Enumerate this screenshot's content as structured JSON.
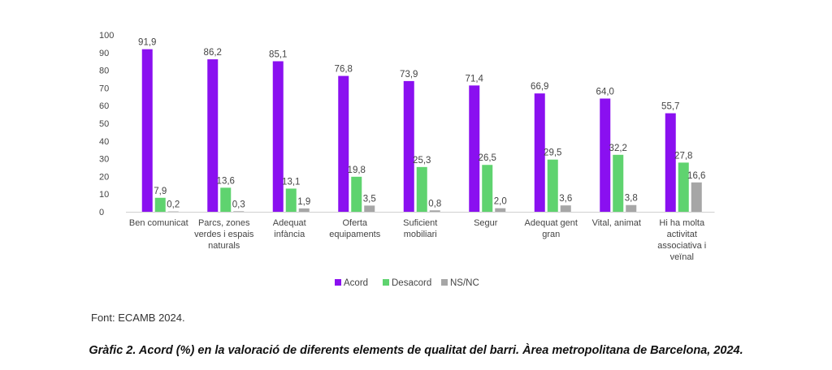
{
  "chart_data": {
    "type": "bar",
    "categories": [
      [
        "Ben comunicat"
      ],
      [
        "Parcs, zones",
        "verdes i espais",
        "naturals"
      ],
      [
        "Adequat",
        "infància"
      ],
      [
        "Oferta",
        "equipaments"
      ],
      [
        "Suficient",
        "mobiliari"
      ],
      [
        "Segur"
      ],
      [
        "Adequat gent",
        "gran"
      ],
      [
        "Vital, animat"
      ],
      [
        "Hi ha molta",
        "activitat",
        "associativa i",
        "veïnal"
      ]
    ],
    "series": [
      {
        "name": "Acord",
        "color": "#8a10f0",
        "values": [
          91.9,
          86.2,
          85.1,
          76.8,
          73.9,
          71.4,
          66.9,
          64.0,
          55.7
        ]
      },
      {
        "name": "Desacord",
        "color": "#5fd36f",
        "values": [
          7.9,
          13.6,
          13.1,
          19.8,
          25.3,
          26.5,
          29.5,
          32.2,
          27.8
        ]
      },
      {
        "name": "NS/NC",
        "color": "#a6a6a6",
        "values": [
          0.2,
          0.3,
          1.9,
          3.5,
          0.8,
          2.0,
          3.6,
          3.8,
          16.6
        ]
      }
    ],
    "value_labels": [
      [
        "91,9",
        "7,9",
        "0,2"
      ],
      [
        "86,2",
        "13,6",
        "0,3"
      ],
      [
        "85,1",
        "13,1",
        "1,9"
      ],
      [
        "76,8",
        "19,8",
        "3,5"
      ],
      [
        "73,9",
        "25,3",
        "0,8"
      ],
      [
        "71,4",
        "26,5",
        "2,0"
      ],
      [
        "66,9",
        "29,5",
        "3,6"
      ],
      [
        "64,0",
        "32,2",
        "3,8"
      ],
      [
        "55,7",
        "27,8",
        "16,6"
      ]
    ],
    "yticks": [
      0,
      10,
      20,
      30,
      40,
      50,
      60,
      70,
      80,
      90,
      100
    ],
    "ylim": [
      0,
      100
    ],
    "legend_position": "bottom-center",
    "grid": false
  },
  "source_text": "Font: ECAMB 2024.",
  "caption": "Gràfic 2. Acord (%) en la valoració de diferents elements de qualitat del barri. Àrea metropolitana de Barcelona, 2024."
}
